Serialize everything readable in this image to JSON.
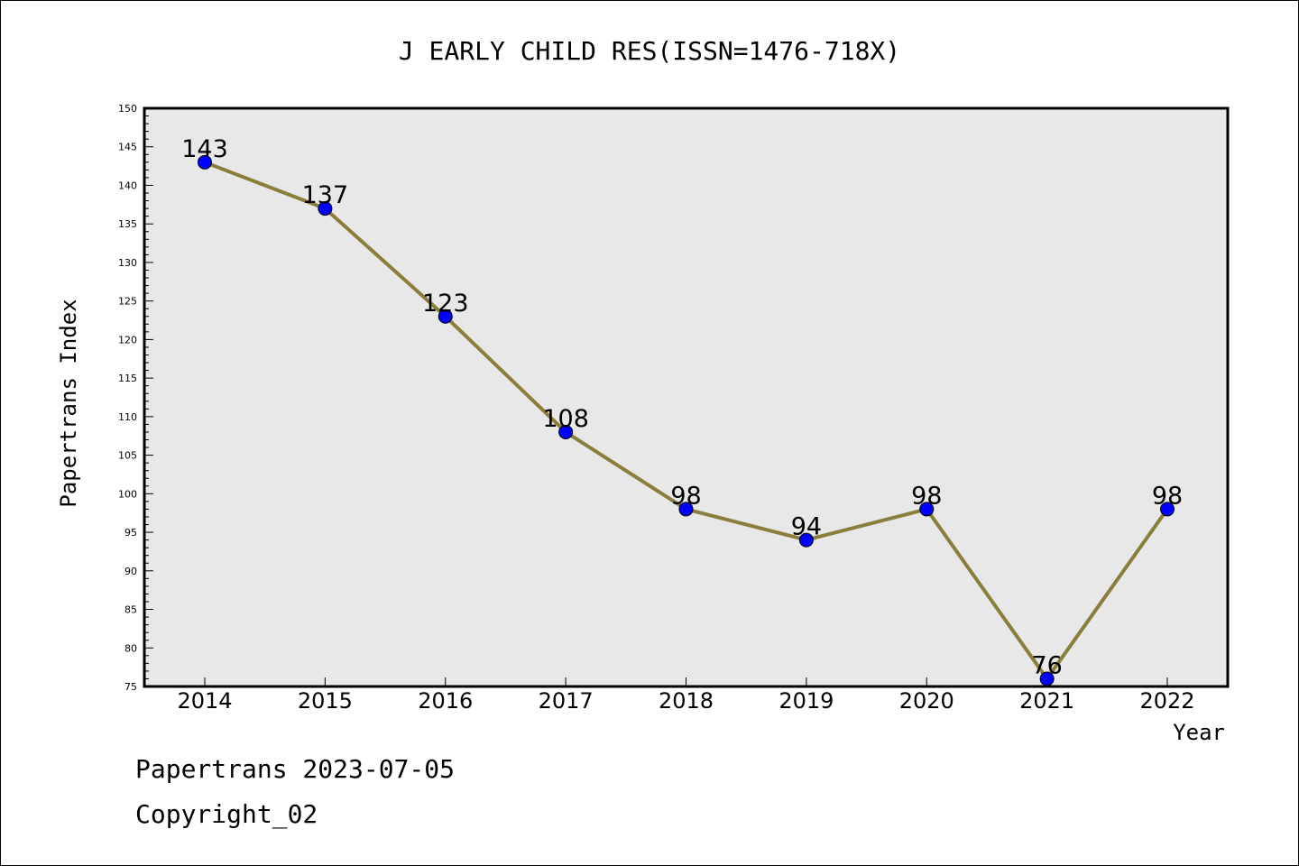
{
  "chart_data": {
    "type": "line",
    "title": "J EARLY CHILD RES(ISSN=1476-718X)",
    "xlabel": "Year",
    "ylabel": "Papertrans Index",
    "categories": [
      "2014",
      "2015",
      "2016",
      "2017",
      "2018",
      "2019",
      "2020",
      "2021",
      "2022"
    ],
    "series": [
      {
        "values": [
          143,
          137,
          123,
          108,
          98,
          94,
          98,
          76,
          98
        ]
      }
    ],
    "data_labels": [
      "143",
      "137",
      "123",
      "108",
      "98",
      "94",
      "98",
      "76",
      "98"
    ],
    "ylim": [
      75,
      150
    ],
    "yticks": [
      "75",
      "80",
      "85",
      "90",
      "95",
      "100",
      "105",
      "110",
      "115",
      "120",
      "125",
      "130",
      "135",
      "140",
      "145",
      "150"
    ],
    "grid": false,
    "legend": "none",
    "colors": {
      "line": "#8b7d3a",
      "marker": "#0000ff",
      "plot_background": "#e8e8e8"
    }
  },
  "footer": {
    "date_text": "Papertrans 2023-07-05",
    "copyright_text": "Copyright_02"
  }
}
